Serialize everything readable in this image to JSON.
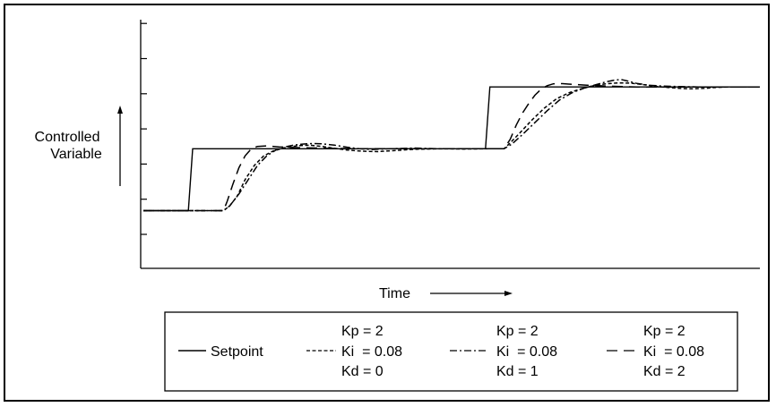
{
  "chart_data": {
    "type": "line",
    "xlabel": "Time",
    "ylabel": [
      "Controlled",
      "Variable"
    ],
    "x_range": [
      0,
      100
    ],
    "y_range": [
      0,
      100
    ],
    "y_tick_count": 8,
    "grid": false,
    "legend_position": "bottom",
    "series": [
      {
        "name": "Setpoint",
        "style": "solid",
        "points": [
          [
            0,
            25
          ],
          [
            7.3,
            25
          ],
          [
            8.0,
            51
          ],
          [
            55.5,
            51
          ],
          [
            56.2,
            77
          ],
          [
            100,
            77
          ]
        ]
      },
      {
        "name": "Kd = 0",
        "style": "dash",
        "params": [
          "Kp = 2",
          "Ki = 0.08",
          "Kd = 0"
        ],
        "points": [
          [
            0,
            25
          ],
          [
            13,
            25
          ],
          [
            14,
            27
          ],
          [
            15.2,
            31
          ],
          [
            16.5,
            38
          ],
          [
            18,
            44
          ],
          [
            19.5,
            48
          ],
          [
            21,
            50
          ],
          [
            23,
            51.5
          ],
          [
            25,
            52.3
          ],
          [
            27,
            52.5
          ],
          [
            29,
            52
          ],
          [
            31,
            51.2
          ],
          [
            33,
            50.5
          ],
          [
            35.5,
            50
          ],
          [
            38,
            49.8
          ],
          [
            41,
            50.3
          ],
          [
            44,
            50.8
          ],
          [
            48,
            51
          ],
          [
            52,
            50.9
          ],
          [
            56,
            51
          ],
          [
            58.5,
            51
          ],
          [
            59.5,
            53.5
          ],
          [
            61,
            57.5
          ],
          [
            63,
            63
          ],
          [
            65,
            68
          ],
          [
            67,
            72
          ],
          [
            69,
            74.5
          ],
          [
            71,
            76.2
          ],
          [
            73,
            77.5
          ],
          [
            75,
            78.3
          ],
          [
            77,
            78.7
          ],
          [
            79,
            78.6
          ],
          [
            81,
            78
          ],
          [
            83,
            77.3
          ],
          [
            85,
            76.8
          ],
          [
            87,
            76.4
          ],
          [
            89,
            76.2
          ],
          [
            91,
            76.4
          ],
          [
            93,
            76.8
          ],
          [
            95,
            77
          ],
          [
            100,
            77
          ]
        ]
      },
      {
        "name": "Kd = 1",
        "style": "dashdot",
        "params": [
          "Kp = 2",
          "Ki = 0.08",
          "Kd = 1"
        ],
        "points": [
          [
            0,
            25
          ],
          [
            13,
            25
          ],
          [
            14,
            27
          ],
          [
            15.5,
            32
          ],
          [
            17,
            38
          ],
          [
            18.5,
            44
          ],
          [
            20,
            48
          ],
          [
            21.5,
            50.5
          ],
          [
            23,
            51.8
          ],
          [
            24.5,
            52.6
          ],
          [
            26,
            53
          ],
          [
            27.5,
            53.2
          ],
          [
            29,
            53.1
          ],
          [
            31,
            52.5
          ],
          [
            33,
            51.7
          ],
          [
            35,
            51
          ],
          [
            37,
            50.7
          ],
          [
            40,
            51
          ],
          [
            44,
            51.3
          ],
          [
            48,
            51
          ],
          [
            52,
            51
          ],
          [
            56,
            51
          ],
          [
            58.5,
            51
          ],
          [
            59.8,
            53
          ],
          [
            61.5,
            57
          ],
          [
            63.5,
            62
          ],
          [
            65.5,
            67
          ],
          [
            67.5,
            71.5
          ],
          [
            69.5,
            74.5
          ],
          [
            71.5,
            76.5
          ],
          [
            73.5,
            78
          ],
          [
            75,
            79.1
          ],
          [
            76.5,
            79.9
          ],
          [
            77.5,
            80.1
          ],
          [
            78.5,
            79.5
          ],
          [
            80,
            78.5
          ],
          [
            82,
            77.7
          ],
          [
            84,
            77.4
          ],
          [
            86,
            77.2
          ],
          [
            90,
            77
          ],
          [
            100,
            77
          ]
        ]
      },
      {
        "name": "Kd = 2",
        "style": "longdash",
        "params": [
          "Kp = 2",
          "Ki = 0.08",
          "Kd = 2"
        ],
        "points": [
          [
            0,
            25
          ],
          [
            13,
            25
          ],
          [
            13.6,
            29
          ],
          [
            14.5,
            36
          ],
          [
            15.5,
            43
          ],
          [
            16.5,
            48
          ],
          [
            17.5,
            51
          ],
          [
            18.5,
            52
          ],
          [
            20,
            52.2
          ],
          [
            22,
            51.8
          ],
          [
            25,
            51.5
          ],
          [
            30,
            51.2
          ],
          [
            35,
            51
          ],
          [
            40,
            51
          ],
          [
            45,
            51
          ],
          [
            50,
            51
          ],
          [
            56,
            51
          ],
          [
            58.5,
            51
          ],
          [
            59.5,
            55
          ],
          [
            60.5,
            61
          ],
          [
            61.5,
            66
          ],
          [
            62.5,
            70
          ],
          [
            63.5,
            73.5
          ],
          [
            64.5,
            76
          ],
          [
            65.5,
            77.5
          ],
          [
            66.5,
            78.3
          ],
          [
            68,
            78.4
          ],
          [
            70,
            78
          ],
          [
            73,
            77.6
          ],
          [
            77,
            77.2
          ],
          [
            80,
            77
          ],
          [
            100,
            77
          ]
        ]
      }
    ]
  },
  "legend": {
    "setpoint_label": "Setpoint",
    "columns": [
      {
        "kp": "Kp = 2",
        "ki": "Ki  = 0.08",
        "kd": "Kd = 0"
      },
      {
        "kp": "Kp = 2",
        "ki": "Ki  = 0.08",
        "kd": "Kd = 1"
      },
      {
        "kp": "Kp = 2",
        "ki": "Ki  = 0.08",
        "kd": "Kd = 2"
      }
    ]
  },
  "colors": {
    "line": "#000000",
    "background": "#ffffff"
  },
  "icons": {
    "y_axis_arrow": "arrow-up-icon",
    "x_axis_arrow": "arrow-right-icon"
  }
}
